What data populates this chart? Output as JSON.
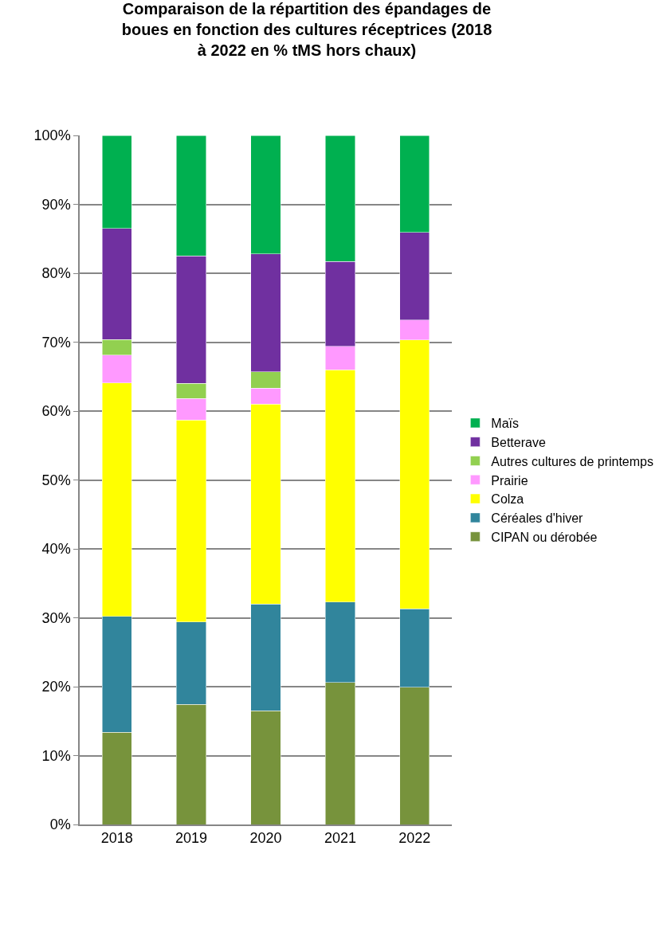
{
  "chart_data": {
    "type": "bar",
    "stacked": true,
    "title": "Comparaison de la répartition des épandages de boues en fonction des cultures réceptrices (2018 à 2022 en % tMS hors chaux)",
    "categories": [
      "2018",
      "2019",
      "2020",
      "2021",
      "2022"
    ],
    "series": [
      {
        "name": "CIPAN ou dérobée",
        "color": "#77933c",
        "values": [
          13.4,
          17.4,
          16.5,
          20.6,
          19.9
        ]
      },
      {
        "name": "Céréales d'hiver",
        "color": "#31859c",
        "values": [
          16.8,
          12.0,
          15.5,
          11.7,
          11.4
        ]
      },
      {
        "name": "Colza",
        "color": "#ffff00",
        "values": [
          33.9,
          29.3,
          29.0,
          33.7,
          39.0
        ]
      },
      {
        "name": "Prairie",
        "color": "#ff99ff",
        "values": [
          4.0,
          3.1,
          2.3,
          3.4,
          2.9
        ]
      },
      {
        "name": "Autres cultures de printemps",
        "color": "#92d050",
        "values": [
          2.3,
          2.2,
          2.4,
          0,
          0
        ]
      },
      {
        "name": "Betterave",
        "color": "#7030a0",
        "values": [
          16.1,
          18.5,
          17.1,
          12.3,
          12.7
        ]
      },
      {
        "name": "Maïs",
        "color": "#00b050",
        "values": [
          13.5,
          17.5,
          17.2,
          18.3,
          14.1
        ]
      }
    ],
    "ylim": [
      0,
      100
    ],
    "yticks": [
      {
        "value": 0,
        "label": "0%"
      },
      {
        "value": 10,
        "label": "10%"
      },
      {
        "value": 20,
        "label": "20%"
      },
      {
        "value": 30,
        "label": "30%"
      },
      {
        "value": 40,
        "label": "40%"
      },
      {
        "value": 50,
        "label": "50%"
      },
      {
        "value": 60,
        "label": "60%"
      },
      {
        "value": 70,
        "label": "70%"
      },
      {
        "value": 80,
        "label": "80%"
      },
      {
        "value": 90,
        "label": "90%"
      },
      {
        "value": 100,
        "label": "100%"
      }
    ],
    "grid": "y",
    "legend": "right"
  }
}
